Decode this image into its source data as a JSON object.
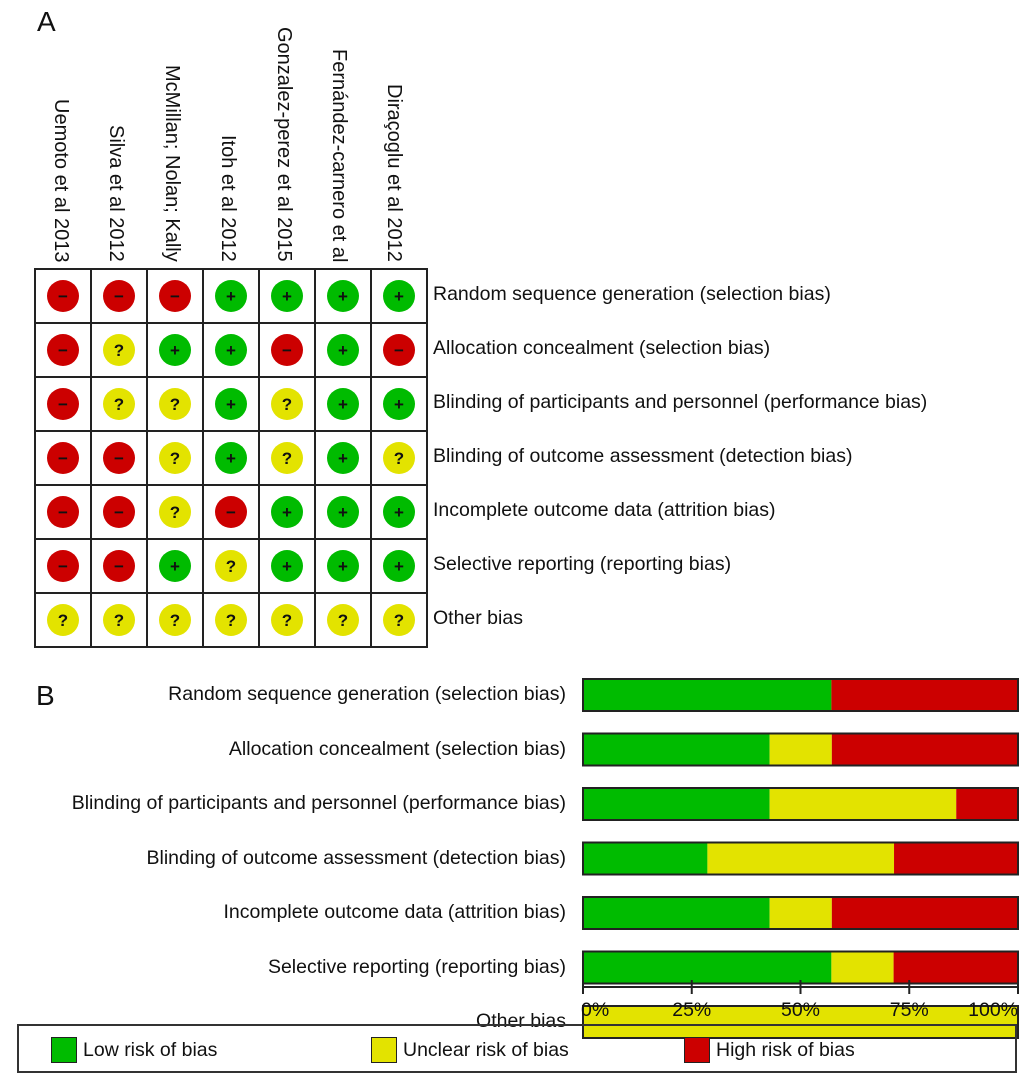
{
  "panel_labels": {
    "a": "A",
    "b": "B"
  },
  "studies": [
    "Uemoto et al 2013",
    "Silva et al 2012",
    "McMillan; Nolan; Kally",
    "Itoh et al 2012",
    "Gonzalez-perez et al 2015",
    "Fernández-carnero et al",
    "Diraçoglu et al 2012"
  ],
  "domains": [
    "Random sequence generation (selection bias)",
    "Allocation concealment (selection bias)",
    "Blinding of participants and personnel (performance bias)",
    "Blinding of outcome assessment (detection bias)",
    "Incomplete outcome data (attrition bias)",
    "Selective reporting (reporting bias)",
    "Other bias"
  ],
  "symbols": {
    "low": "+",
    "unclear": "?",
    "high": "−"
  },
  "colors": {
    "low": "#00bb00",
    "unclear": "#e3e300",
    "high": "#cc0000"
  },
  "grid": [
    [
      "high",
      "high",
      "high",
      "low",
      "low",
      "low",
      "low"
    ],
    [
      "high",
      "unclear",
      "low",
      "low",
      "high",
      "low",
      "high"
    ],
    [
      "high",
      "unclear",
      "unclear",
      "low",
      "unclear",
      "low",
      "low"
    ],
    [
      "high",
      "high",
      "unclear",
      "low",
      "unclear",
      "low",
      "unclear"
    ],
    [
      "high",
      "high",
      "unclear",
      "high",
      "low",
      "low",
      "low"
    ],
    [
      "high",
      "high",
      "low",
      "unclear",
      "low",
      "low",
      "low"
    ],
    [
      "unclear",
      "unclear",
      "unclear",
      "unclear",
      "unclear",
      "unclear",
      "unclear"
    ]
  ],
  "chart_data": {
    "type": "bar",
    "orientation": "horizontal-stacked-percent",
    "categories": [
      "Random sequence generation (selection bias)",
      "Allocation concealment (selection bias)",
      "Blinding of participants and personnel (performance bias)",
      "Blinding of outcome assessment (detection bias)",
      "Incomplete outcome data (attrition bias)",
      "Selective reporting (reporting bias)",
      "Other bias"
    ],
    "series": [
      {
        "name": "Low risk of bias",
        "key": "low",
        "values": [
          57.1,
          42.9,
          42.9,
          28.6,
          42.9,
          57.1,
          0
        ]
      },
      {
        "name": "Unclear risk of bias",
        "key": "unclear",
        "values": [
          0,
          14.3,
          42.9,
          42.9,
          14.3,
          14.3,
          100
        ]
      },
      {
        "name": "High risk of bias",
        "key": "high",
        "values": [
          42.9,
          42.9,
          14.3,
          28.6,
          42.9,
          28.6,
          0
        ]
      }
    ],
    "xlim": [
      0,
      100
    ],
    "xticks": [
      "0%",
      "25%",
      "50%",
      "75%",
      "100%"
    ],
    "title": "",
    "xlabel": "",
    "ylabel": "",
    "grid": false,
    "legend": "bottom"
  },
  "legend": [
    {
      "label": "Low risk of bias",
      "key": "low"
    },
    {
      "label": "Unclear risk of bias",
      "key": "unclear"
    },
    {
      "label": "High risk of bias",
      "key": "high"
    }
  ]
}
